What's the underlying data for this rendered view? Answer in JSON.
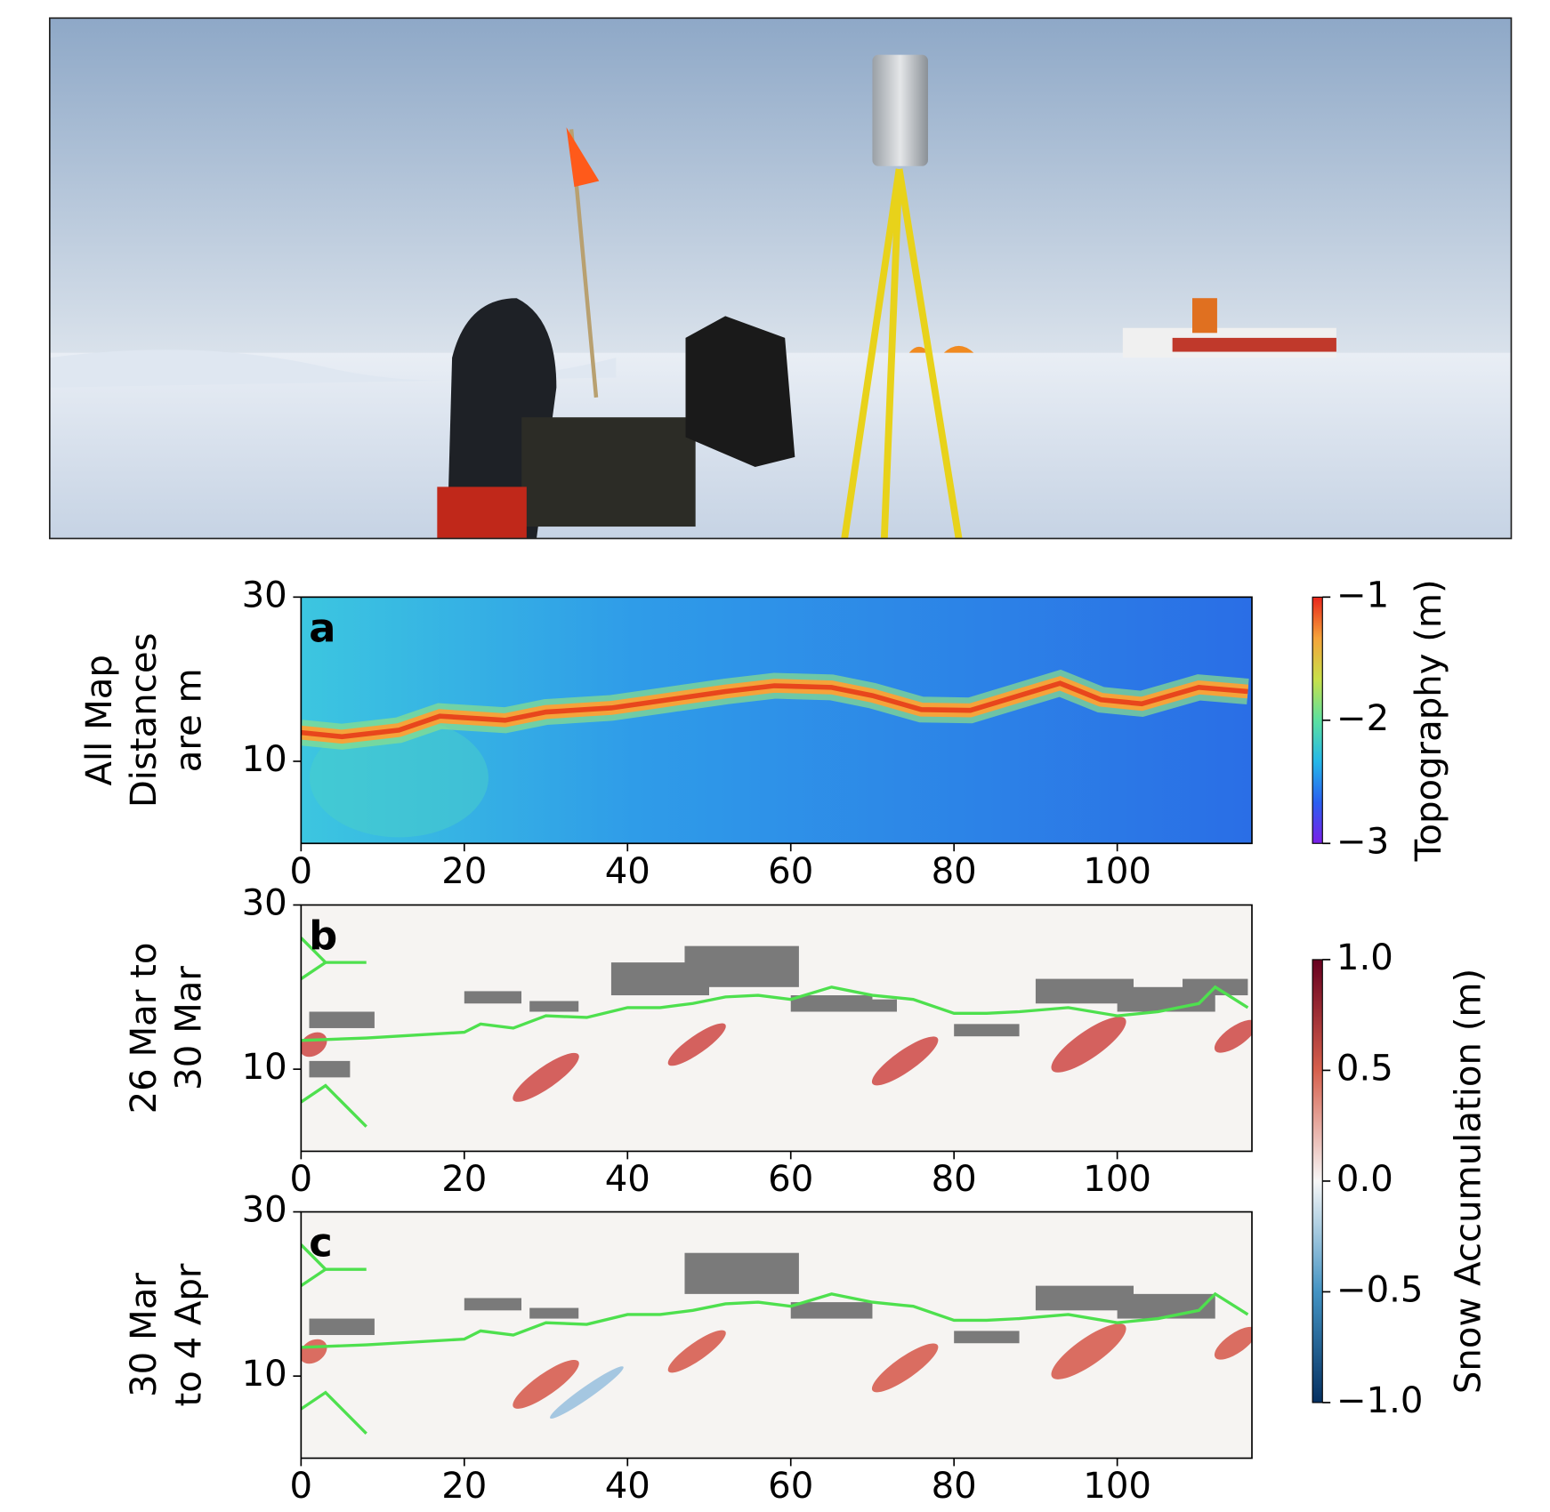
{
  "chart_data": [
    {
      "type": "heatmap",
      "panel_label": "a",
      "ylabel": [
        "All Map",
        "Distances",
        "are m"
      ],
      "xlim": [
        0,
        116.5
      ],
      "ylim": [
        0,
        30
      ],
      "xticks": [
        0,
        20,
        40,
        60,
        80,
        100
      ],
      "yticks": [
        10,
        30
      ],
      "colorbar": {
        "label": "Topography (m)",
        "lim": [
          -3,
          -1
        ],
        "colors": [
          "#7a1fe8",
          "#2a5ff0",
          "#25b8e8",
          "#5ce0a0",
          "#c8e04a",
          "#f5a33a",
          "#e8261c"
        ],
        "ticks": [
          {
            "value": -1,
            "label": "−1"
          },
          {
            "value": -2,
            "label": "−2"
          },
          {
            "value": -3,
            "label": "−3"
          }
        ]
      }
    },
    {
      "type": "heatmap",
      "panel_label": "b",
      "ylabel": [
        "26 Mar to",
        "30 Mar"
      ],
      "xlim": [
        0,
        116.5
      ],
      "ylim": [
        0,
        30
      ],
      "xticks": [
        0,
        20,
        40,
        60,
        80,
        100
      ],
      "yticks": [
        10,
        30
      ],
      "colorbar": {
        "label": "Snow Accumulation (m)",
        "lim": [
          -1,
          1
        ],
        "colors": [
          "#053061",
          "#4393c3",
          "#f7f7f7",
          "#d6604d",
          "#67001f"
        ],
        "ticks": [
          {
            "value": 1,
            "label": "1.0"
          },
          0.5,
          {
            "value": 0,
            "label": "0.0"
          },
          {
            "value": -0.5,
            "label": "−0.5"
          },
          {
            "value": -1,
            "label": "−1.0"
          }
        ]
      }
    },
    {
      "type": "heatmap",
      "panel_label": "c",
      "ylabel": [
        "30 Mar",
        "to 4 Apr"
      ],
      "xlim": [
        0,
        116.5
      ],
      "ylim": [
        0,
        30
      ],
      "xticks": [
        0,
        20,
        40,
        60,
        80,
        100
      ],
      "yticks": [
        10,
        30
      ]
    }
  ]
}
